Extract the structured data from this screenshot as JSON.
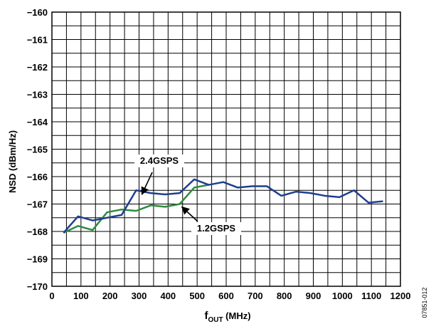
{
  "chart_data": {
    "type": "line",
    "xlabel": "f",
    "xlabel_sub": "OUT",
    "xlabel_unit": " (MHz)",
    "ylabel": "NSD (dBm/Hz)",
    "xlim": [
      0,
      1200
    ],
    "ylim": [
      -170,
      -160
    ],
    "x_ticks": [
      0,
      100,
      200,
      300,
      400,
      500,
      600,
      700,
      800,
      900,
      1000,
      1100,
      1200
    ],
    "x_tick_labels": [
      "0",
      "100",
      "200",
      "300",
      "400",
      "500",
      "600",
      "700",
      "800",
      "900",
      "1000",
      "1100",
      "1200"
    ],
    "y_ticks": [
      -160,
      -161,
      -162,
      -163,
      -164,
      -165,
      -166,
      -167,
      -168,
      -169,
      -170
    ],
    "y_tick_labels": [
      "−160",
      "−161",
      "−162",
      "−163",
      "−164",
      "−165",
      "−166",
      "−167",
      "−168",
      "−169",
      "−170"
    ],
    "grid": true,
    "grid_x_step": 50,
    "grid_y_step": 0.5,
    "series": [
      {
        "name": "2.4GSPS",
        "color": "#1f3f8f",
        "x": [
          40,
          90,
          140,
          190,
          240,
          290,
          340,
          390,
          440,
          490,
          540,
          590,
          640,
          690,
          740,
          790,
          840,
          890,
          940,
          990,
          1040,
          1090,
          1140
        ],
        "y": [
          -168.05,
          -167.45,
          -167.6,
          -167.5,
          -167.4,
          -166.5,
          -166.6,
          -166.65,
          -166.6,
          -166.1,
          -166.3,
          -166.2,
          -166.4,
          -166.35,
          -166.35,
          -166.7,
          -166.55,
          -166.6,
          -166.7,
          -166.75,
          -166.5,
          -166.95,
          -166.9
        ]
      },
      {
        "name": "1.2GSPS",
        "color": "#2e8b3e",
        "x": [
          40,
          90,
          140,
          190,
          240,
          290,
          340,
          390,
          440,
          490,
          540
        ],
        "y": [
          -168.05,
          -167.8,
          -167.95,
          -167.3,
          -167.2,
          -167.25,
          -167.05,
          -167.1,
          -167.0,
          -166.4,
          -166.3
        ]
      }
    ],
    "annotations": [
      {
        "text": "2.4GSPS",
        "series": "2.4GSPS",
        "points_to_x": 300
      },
      {
        "text": "1.2GSPS",
        "series": "1.2GSPS",
        "points_to_x": 440
      }
    ],
    "figure_id": "07851-012"
  }
}
